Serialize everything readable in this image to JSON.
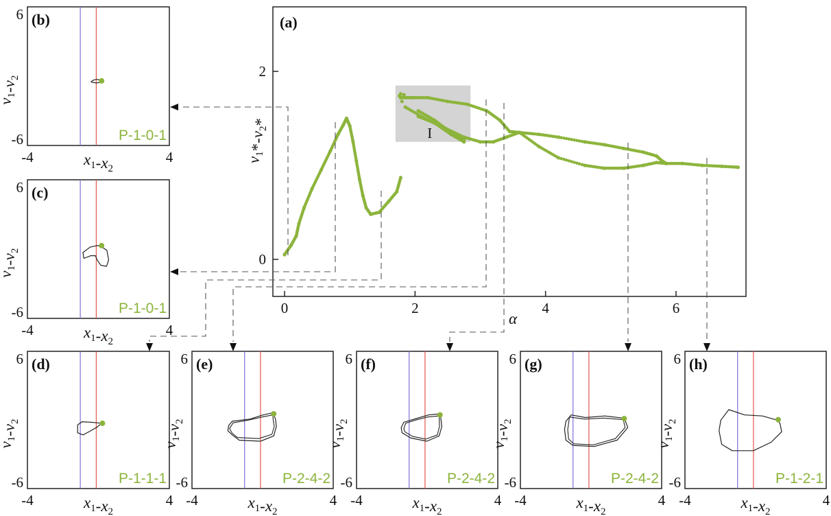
{
  "colors": {
    "bifurcation": "#8cb43c",
    "shade": "#d4d4d4",
    "orbit": "#222222",
    "line_blue": "#7b6fd6",
    "line_red": "#e2574c",
    "connector": "#555555"
  },
  "chart_data": [
    {
      "type": "scatter",
      "panel": "(a)",
      "xlabel": "α",
      "ylabel": "v1*-v2*",
      "xlim": [
        -0.2,
        7.3
      ],
      "ylim": [
        -0.3,
        3.5
      ],
      "x_ticks": [
        "0",
        "2",
        "4",
        "6"
      ],
      "y_ticks": [
        "0",
        "2"
      ],
      "region_label": "I",
      "region": {
        "x": [
          1.7,
          2.85
        ],
        "y": [
          1.25,
          1.85
        ]
      },
      "branches": [
        {
          "name": "",
          "points": [
            [
              0.0,
              0.05
            ],
            [
              0.1,
              0.15
            ],
            [
              0.18,
              0.25
            ],
            [
              0.22,
              0.38
            ],
            [
              0.3,
              0.55
            ],
            [
              0.42,
              0.75
            ],
            [
              0.56,
              0.95
            ],
            [
              0.7,
              1.15
            ],
            [
              0.82,
              1.33
            ],
            [
              0.9,
              1.43
            ],
            [
              0.95,
              1.5
            ],
            [
              1.0,
              1.42
            ],
            [
              1.05,
              1.25
            ],
            [
              1.1,
              1.05
            ],
            [
              1.15,
              0.85
            ],
            [
              1.2,
              0.68
            ],
            [
              1.25,
              0.55
            ],
            [
              1.32,
              0.48
            ],
            [
              1.45,
              0.5
            ],
            [
              1.6,
              0.62
            ],
            [
              1.72,
              0.72
            ],
            [
              1.78,
              0.87
            ]
          ]
        },
        {
          "name": "",
          "points": [
            [
              1.78,
              1.72
            ],
            [
              1.95,
              1.72
            ],
            [
              2.2,
              1.72
            ],
            [
              2.5,
              1.68
            ],
            [
              2.8,
              1.65
            ],
            [
              3.1,
              1.58
            ],
            [
              3.3,
              1.48
            ],
            [
              3.45,
              1.36
            ],
            [
              3.6,
              1.35
            ]
          ]
        },
        {
          "name": "",
          "points": [
            [
              1.85,
              1.62
            ],
            [
              2.15,
              1.5
            ],
            [
              2.45,
              1.4
            ],
            [
              2.75,
              1.3
            ],
            [
              3.0,
              1.25
            ],
            [
              3.2,
              1.25
            ],
            [
              3.4,
              1.3
            ],
            [
              3.6,
              1.35
            ]
          ]
        },
        {
          "name": "",
          "points": [
            [
              2.05,
              1.58
            ],
            [
              2.3,
              1.48
            ],
            [
              2.55,
              1.35
            ],
            [
              2.75,
              1.27
            ]
          ]
        },
        {
          "name": "",
          "points": [
            [
              2.05,
              1.52
            ],
            [
              2.3,
              1.45
            ],
            [
              2.55,
              1.33
            ],
            [
              2.75,
              1.25
            ]
          ]
        },
        {
          "name": "",
          "points": [
            [
              3.6,
              1.35
            ],
            [
              3.9,
              1.33
            ],
            [
              4.2,
              1.3
            ],
            [
              4.6,
              1.25
            ],
            [
              4.9,
              1.22
            ],
            [
              5.2,
              1.18
            ],
            [
              5.5,
              1.14
            ],
            [
              5.7,
              1.1
            ],
            [
              5.78,
              1.05
            ],
            [
              5.85,
              1.02
            ]
          ]
        },
        {
          "name": "",
          "points": [
            [
              3.6,
              1.35
            ],
            [
              3.9,
              1.2
            ],
            [
              4.2,
              1.08
            ],
            [
              4.6,
              1.0
            ],
            [
              4.9,
              0.97
            ],
            [
              5.2,
              0.97
            ],
            [
              5.5,
              1.0
            ],
            [
              5.7,
              1.03
            ],
            [
              5.85,
              1.02
            ]
          ]
        },
        {
          "name": "",
          "points": [
            [
              5.85,
              1.02
            ],
            [
              6.1,
              1.02
            ],
            [
              6.4,
              1.0
            ],
            [
              6.7,
              0.99
            ],
            [
              6.95,
              0.98
            ]
          ]
        }
      ]
    },
    {
      "type": "line",
      "panel": "(b)",
      "label": "P-1-0-1",
      "xlabel": "x1-x2",
      "ylabel": "v1-v2",
      "x_ticks": [
        "-4",
        "4"
      ],
      "y_ticks": [
        "6",
        "-6"
      ],
      "xlim": [
        -4,
        4
      ],
      "ylim": [
        -6,
        6
      ],
      "x": [
        -0.3,
        -0.12,
        0.08,
        0.25,
        0.2,
        0.0,
        -0.25,
        -0.3
      ],
      "y": [
        0.0,
        0.18,
        0.22,
        0.12,
        -0.08,
        -0.12,
        -0.05,
        0.0
      ],
      "marker": [
        0.3,
        0.08
      ],
      "vlines": [
        -0.9,
        0.0
      ]
    },
    {
      "type": "line",
      "panel": "(c)",
      "label": "P-1-0-1",
      "xlabel": "x1-x2",
      "ylabel": "v1-v2",
      "x_ticks": [
        "-4",
        "4"
      ],
      "y_ticks": [
        "6",
        "-6"
      ],
      "xlim": [
        -4,
        4
      ],
      "ylim": [
        -6,
        6
      ],
      "x": [
        0.25,
        0.6,
        0.7,
        0.58,
        0.25,
        0.05,
        -0.05,
        -0.3,
        -0.7,
        -0.75,
        -0.35,
        0.05,
        0.25
      ],
      "y": [
        0.8,
        0.4,
        -0.5,
        -1.1,
        -1.0,
        -0.5,
        -0.1,
        -0.1,
        -0.35,
        0.2,
        0.7,
        0.85,
        0.8
      ],
      "marker": [
        0.3,
        0.85
      ],
      "vlines": [
        -0.9,
        0.0
      ]
    },
    {
      "type": "line",
      "panel": "(d)",
      "label": "P-1-1-1",
      "xlabel": "x1-x2",
      "ylabel": "v1-v2",
      "x_ticks": [
        "-4",
        "4"
      ],
      "y_ticks": [
        "6",
        "-6"
      ],
      "xlim": [
        -4,
        4
      ],
      "ylim": [
        -6,
        6
      ],
      "x": [
        0.3,
        0.05,
        -0.3,
        -0.8,
        -1.05,
        -1.05,
        -0.75,
        -0.35,
        0.05,
        0.3
      ],
      "y": [
        0.2,
        0.25,
        0.3,
        0.35,
        0.05,
        -0.7,
        -0.9,
        -0.55,
        -0.15,
        0.2
      ],
      "marker": [
        0.35,
        0.2
      ],
      "vlines": [
        -0.9,
        0.0
      ]
    },
    {
      "type": "line",
      "panel": "(e)",
      "label": "P-2-4-2",
      "xlabel": "x1-x2",
      "ylabel": "v1-v2",
      "x_ticks": [
        "-4",
        "4"
      ],
      "y_ticks": [
        "6",
        "-6"
      ],
      "xlim": [
        -4,
        4
      ],
      "ylim": [
        -6,
        6
      ],
      "x": [
        0.7,
        0.15,
        -0.6,
        -1.6,
        -1.8,
        -1.85,
        -1.6,
        -1.2,
        0.0,
        0.75,
        0.9,
        0.85,
        0.7
      ],
      "y": [
        1.2,
        1.0,
        0.6,
        0.4,
        0.0,
        -0.5,
        -0.9,
        -1.4,
        -1.5,
        -1.0,
        -0.1,
        0.6,
        1.2
      ],
      "x2": [
        0.7,
        0.1,
        -0.7,
        -1.55,
        -1.75,
        -1.6,
        -1.3,
        -0.1,
        0.65,
        0.78,
        0.72,
        0.7
      ],
      "y2": [
        1.0,
        0.8,
        0.5,
        0.25,
        -0.3,
        -0.75,
        -1.15,
        -1.25,
        -0.85,
        -0.1,
        0.55,
        1.0
      ],
      "marker": [
        0.75,
        1.1
      ],
      "vlines": [
        -0.9,
        0.0
      ]
    },
    {
      "type": "line",
      "panel": "(f)",
      "label": "P-2-4-2",
      "xlabel": "x1-x2",
      "ylabel": "v1-v2",
      "x_ticks": [
        "-4",
        "4"
      ],
      "y_ticks": [
        "6",
        "-6"
      ],
      "xlim": [
        -4,
        4
      ],
      "ylim": [
        -6,
        6
      ],
      "x": [
        0.85,
        0.2,
        -0.5,
        -1.2,
        -1.35,
        -1.3,
        -0.8,
        0.1,
        0.8,
        0.95,
        0.9,
        0.85
      ],
      "y": [
        1.1,
        1.0,
        0.65,
        0.3,
        -0.2,
        -0.7,
        -1.2,
        -1.5,
        -1.0,
        -0.1,
        0.6,
        1.1
      ],
      "x2": [
        0.8,
        0.15,
        -0.55,
        -1.1,
        -1.2,
        -1.15,
        -0.7,
        0.05,
        0.7,
        0.82,
        0.8
      ],
      "y2": [
        0.9,
        0.8,
        0.5,
        0.2,
        -0.3,
        -0.6,
        -1.05,
        -1.3,
        -0.9,
        -0.1,
        0.9
      ],
      "marker": [
        0.85,
        1.0
      ],
      "vlines": [
        -0.9,
        0.0
      ]
    },
    {
      "type": "line",
      "panel": "(g)",
      "label": "P-2-4-2",
      "xlabel": "x1-x2",
      "ylabel": "v1-v2",
      "x_ticks": [
        "-4",
        "4"
      ],
      "y_ticks": [
        "6",
        "-6"
      ],
      "xlim": [
        -4,
        4
      ],
      "ylim": [
        -6,
        6
      ],
      "x": [
        1.95,
        0.9,
        -0.2,
        -1.0,
        -1.3,
        -1.38,
        -1.3,
        -0.9,
        0.3,
        1.6,
        2.2,
        2.05,
        1.95
      ],
      "y": [
        0.7,
        0.9,
        0.75,
        1.0,
        0.4,
        -0.4,
        -1.4,
        -1.9,
        -2.0,
        -1.4,
        -0.2,
        0.5,
        0.7
      ],
      "x2": [
        1.95,
        0.85,
        -0.25,
        -1.1,
        -1.2,
        -1.15,
        -0.85,
        0.25,
        1.5,
        2.05,
        1.95
      ],
      "y2": [
        0.55,
        0.7,
        0.6,
        0.8,
        -0.4,
        -1.3,
        -1.75,
        -1.85,
        -1.25,
        -0.2,
        0.55
      ],
      "marker": [
        2.0,
        0.65
      ],
      "vlines": [
        -0.9,
        0.0
      ]
    },
    {
      "type": "line",
      "panel": "(h)",
      "label": "P-1-2-1",
      "xlabel": "x1-x2",
      "ylabel": "v1-v2",
      "x_ticks": [
        "-4",
        "4"
      ],
      "y_ticks": [
        "6",
        "-6"
      ],
      "xlim": [
        -4,
        4
      ],
      "ylim": [
        -6,
        6
      ],
      "x": [
        1.35,
        0.5,
        -0.5,
        -1.4,
        -1.85,
        -1.95,
        -1.8,
        -1.2,
        0.0,
        1.0,
        1.6,
        1.5,
        1.35
      ],
      "y": [
        0.5,
        0.9,
        1.0,
        1.5,
        0.5,
        -0.5,
        -1.8,
        -2.4,
        -2.4,
        -1.6,
        -0.6,
        0.2,
        0.5
      ],
      "marker": [
        1.4,
        0.55
      ],
      "vlines": [
        -0.9,
        0.0
      ]
    }
  ]
}
